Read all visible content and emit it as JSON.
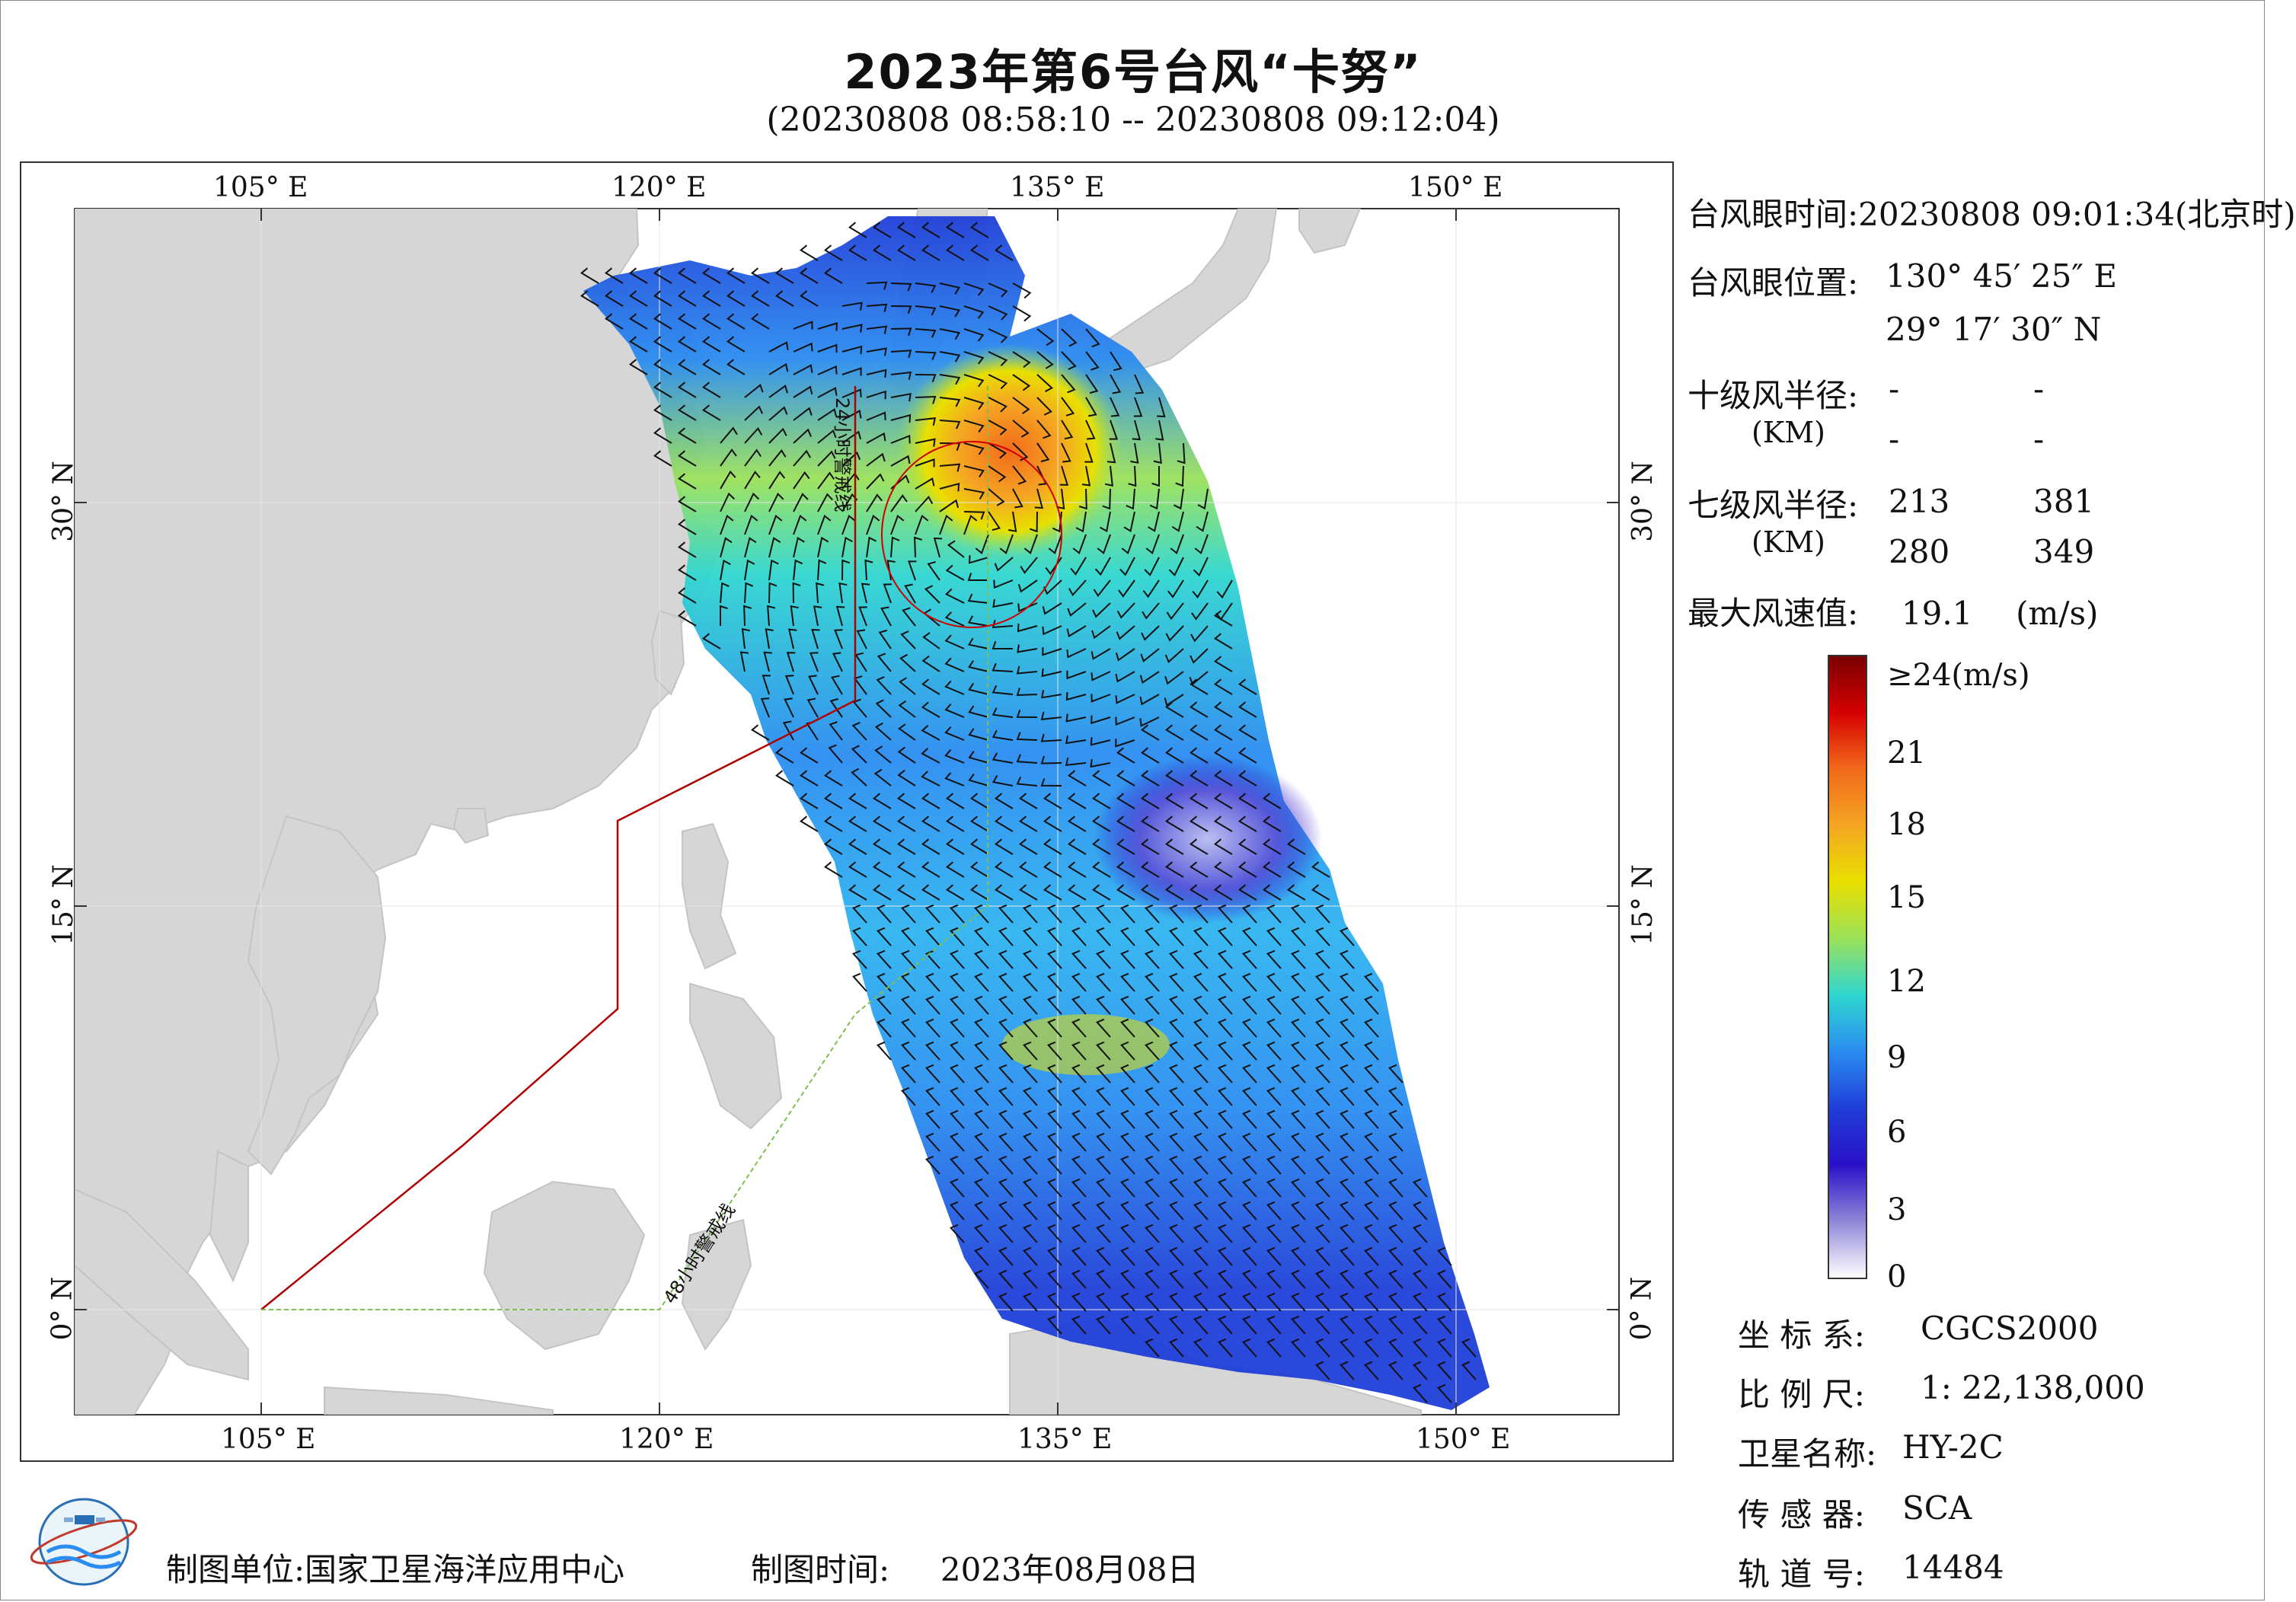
{
  "header": {
    "title": "2023年第6号台风“卡努”",
    "subtitle": "(20230808 08:58:10 -- 20230808 09:12:04)"
  },
  "map": {
    "lon_labels": [
      "105° E",
      "120° E",
      "135° E",
      "150° E"
    ],
    "lat_labels": [
      "30° N",
      "15° N",
      "0° N"
    ],
    "line_24h_label": "24小时警戒线",
    "line_48h_label": "48小时警戒线",
    "colors": {
      "land": "#d6d6d6",
      "sea": "#ffffff",
      "warning_24h": "#b00000",
      "warning_48h": "#7fbf4f",
      "typhoon_circle": "#d00000"
    }
  },
  "info": {
    "eye_time_label": "台风眼时间:",
    "eye_time_value": "20230808 09:01:34(北京时)",
    "eye_pos_label": "台风眼位置:",
    "eye_lon": "130° 45′ 25″ E",
    "eye_lat": "29° 17′ 30″ N",
    "r10_label": "十级风半径:",
    "r10_unit": "(KM)",
    "r10_values": [
      "-",
      "-",
      "-",
      "-"
    ],
    "r7_label": "七级风半径:",
    "r7_unit": "(KM)",
    "r7_values": [
      "213",
      "381",
      "280",
      "349"
    ],
    "max_wind_label": "最大风速值:",
    "max_wind_value": "19.1",
    "max_wind_unit": "(m/s)"
  },
  "colorbar": {
    "labels": [
      "≥24(m/s)",
      "21",
      "18",
      "15",
      "12",
      "9",
      "6",
      "3",
      "0"
    ],
    "stops": [
      "#7a0000",
      "#d40000",
      "#f26a1b",
      "#f5a623",
      "#e8e000",
      "#9be15a",
      "#2fd6d0",
      "#2a8cf0",
      "#1f3ed8",
      "#2a10c8",
      "#8f86d8",
      "#ffffff"
    ]
  },
  "meta": {
    "crs_label": "坐 标 系:",
    "crs_value": "CGCS2000",
    "scale_label": "比 例 尺:",
    "scale_value": "1: 22,138,000",
    "satellite_label": "卫星名称:",
    "satellite_value": "HY-2C",
    "sensor_label": "传 感 器:",
    "sensor_value": "SCA",
    "orbit_label": "轨 道 号:",
    "orbit_value": "14484"
  },
  "footer": {
    "producer_label": "制图单位:",
    "producer_value": "国家卫星海洋应用中心",
    "date_label": "制图时间:",
    "date_value": "2023年08月08日"
  }
}
